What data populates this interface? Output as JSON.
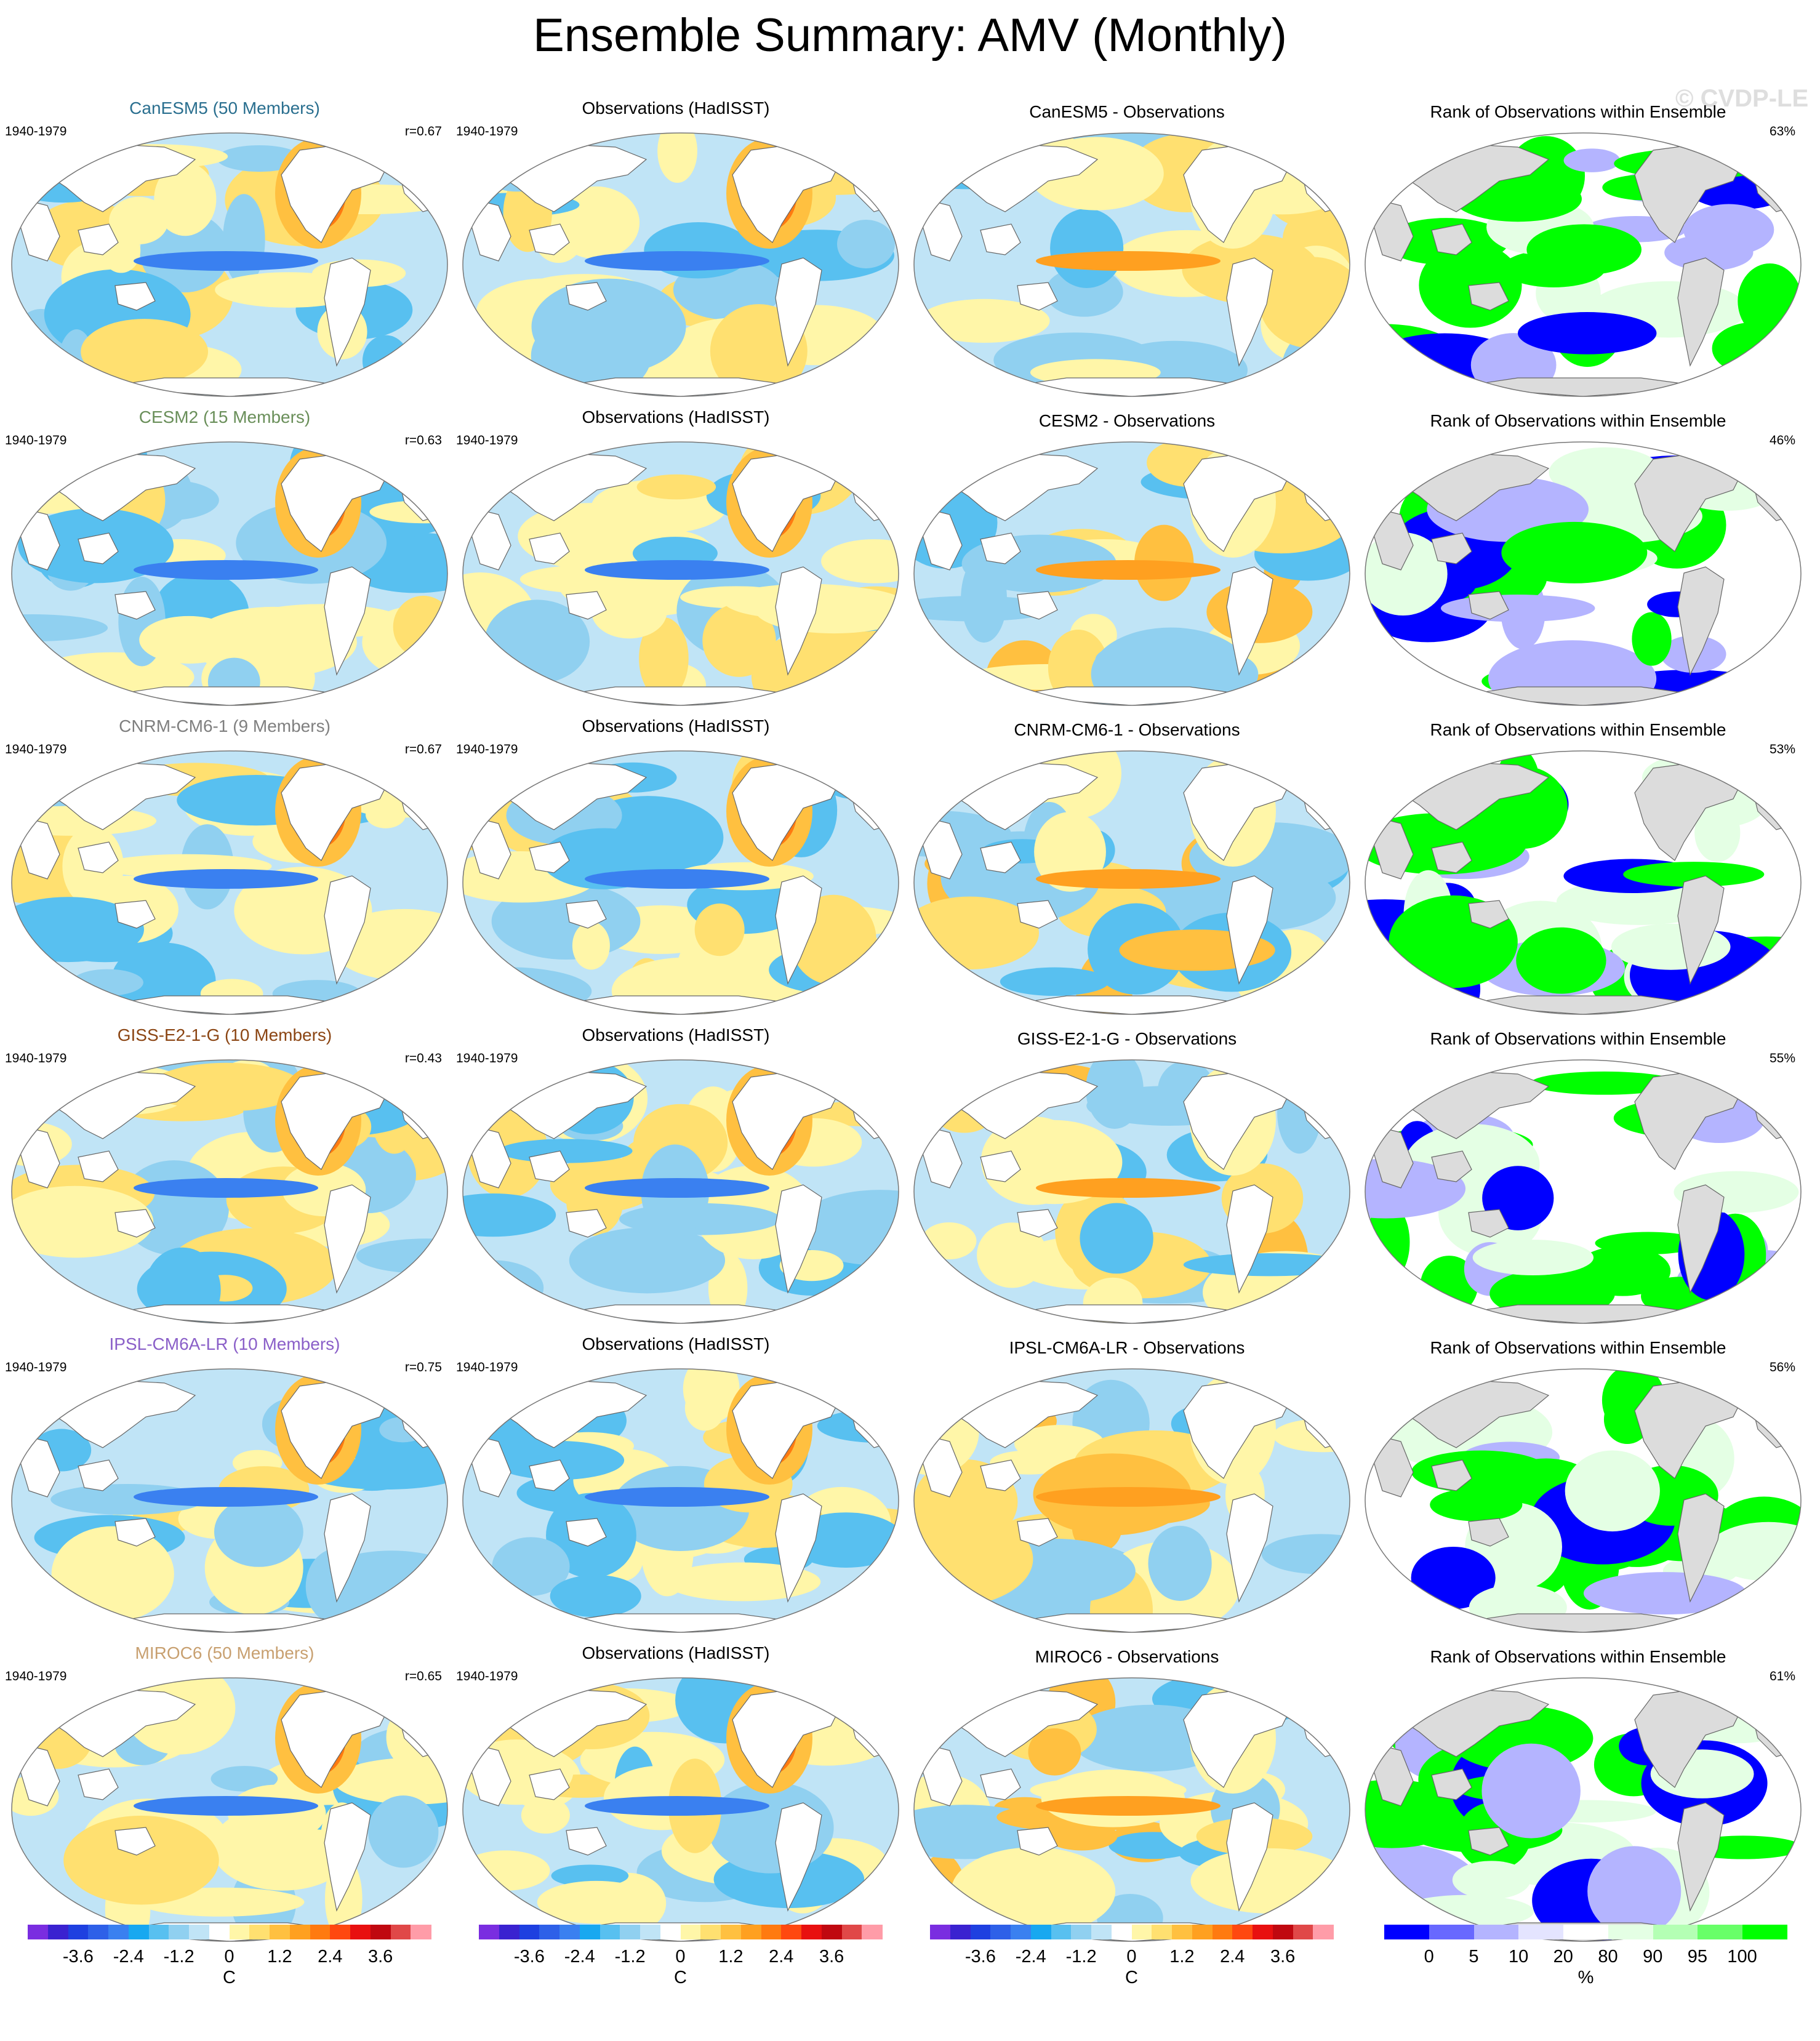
{
  "title": "Ensemble Summary: AMV (Monthly)",
  "watermark": "© CVDP-LE",
  "period": "1940-1979",
  "rows": [
    {
      "model_title": "CanESM5 (50 Members)",
      "color": "#2a6f8f",
      "r": "r=0.67",
      "obs_title": "Observations (HadISST)",
      "diff_title": "CanESM5 - Observations",
      "rank_title": "Rank of Observations within Ensemble",
      "rank_pct": "63%"
    },
    {
      "model_title": "CESM2 (15 Members)",
      "color": "#6a8f5a",
      "r": "r=0.63",
      "obs_title": "Observations (HadISST)",
      "diff_title": "CESM2 - Observations",
      "rank_title": "Rank of Observations within Ensemble",
      "rank_pct": "46%"
    },
    {
      "model_title": "CNRM-CM6-1 (9 Members)",
      "color": "#7f7f7f",
      "r": "r=0.67",
      "obs_title": "Observations (HadISST)",
      "diff_title": "CNRM-CM6-1 - Observations",
      "rank_title": "Rank of Observations within Ensemble",
      "rank_pct": "53%"
    },
    {
      "model_title": "GISS-E2-1-G (10 Members)",
      "color": "#8b4513",
      "r": "r=0.43",
      "obs_title": "Observations (HadISST)",
      "diff_title": "GISS-E2-1-G - Observations",
      "rank_title": "Rank of Observations within Ensemble",
      "rank_pct": "55%"
    },
    {
      "model_title": "IPSL-CM6A-LR (10 Members)",
      "color": "#8a5fc8",
      "r": "r=0.75",
      "obs_title": "Observations (HadISST)",
      "diff_title": "IPSL-CM6A-LR - Observations",
      "rank_title": "Rank of Observations within Ensemble",
      "rank_pct": "56%"
    },
    {
      "model_title": "MIROC6 (50 Members)",
      "color": "#c8a070",
      "r": "r=0.65",
      "obs_title": "Observations (HadISST)",
      "diff_title": "MIROC6 - Observations",
      "rank_title": "Rank of Observations within Ensemble",
      "rank_pct": "61%"
    }
  ],
  "colorbar_sst": {
    "colors": [
      "#7a2de0",
      "#3a22d0",
      "#1e40e0",
      "#2e60e8",
      "#3a80f0",
      "#18a8f0",
      "#58c0f0",
      "#90d0f0",
      "#c0e4f6",
      "#ffffff",
      "#fff6a8",
      "#ffe070",
      "#ffc040",
      "#ffa020",
      "#ff7a10",
      "#ff4810",
      "#e81010",
      "#c00810",
      "#e04848",
      "#ff9ca8"
    ],
    "ticks": [
      "-3.6",
      "-2.4",
      "-1.2",
      "0",
      "1.2",
      "2.4",
      "3.6"
    ],
    "unit": "C"
  },
  "colorbar_rank": {
    "colors": [
      "#0000ff",
      "#6868ff",
      "#b4b4ff",
      "#e4e4ff",
      "#ffffff",
      "#e4ffe4",
      "#b4ffb4",
      "#68ff68",
      "#00ff00"
    ],
    "ticks": [
      "0",
      "5",
      "10",
      "20",
      "80",
      "90",
      "95",
      "100"
    ],
    "unit": "%"
  }
}
